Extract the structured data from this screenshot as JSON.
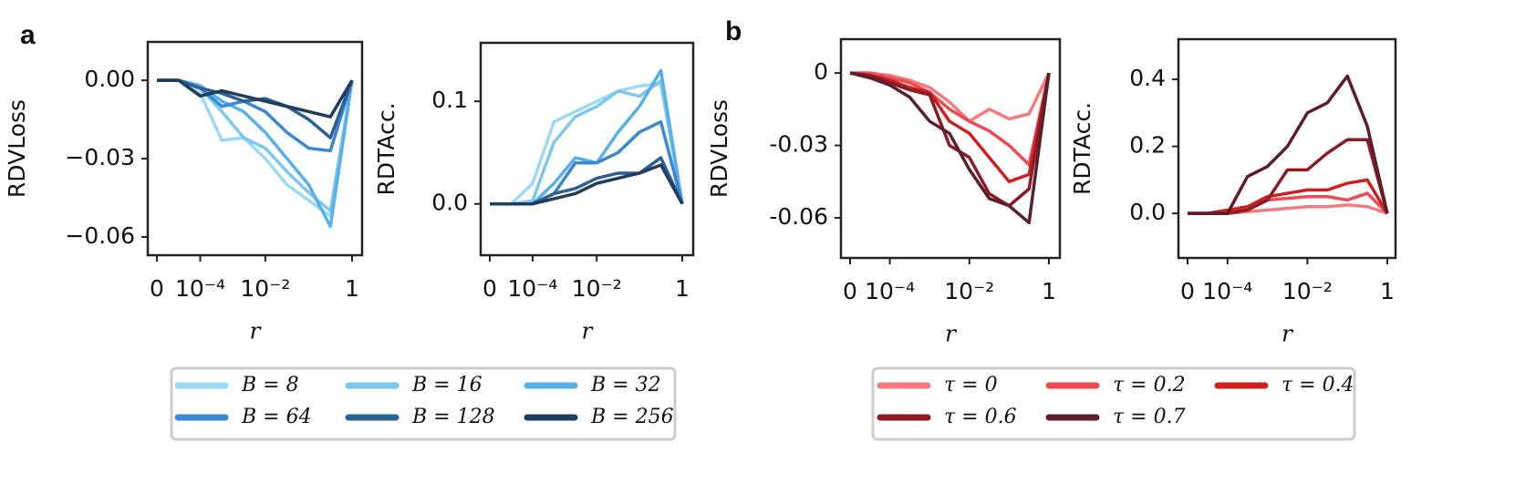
{
  "panel_labels": [
    "a",
    "b"
  ],
  "chart_data": [
    {
      "type": "line",
      "ylabel": "RDVLoss",
      "xlabel": "r",
      "legend": "below",
      "categories": [
        "0",
        null,
        "10⁻⁴",
        null,
        null,
        "10⁻²",
        null,
        null,
        null,
        "1"
      ],
      "ylim": [
        -0.067,
        0.0147
      ],
      "yticks": [
        {
          "value": 0,
          "label": "0.00"
        },
        {
          "value": -0.03,
          "label": "−0.03"
        },
        {
          "value": -0.06,
          "label": "−0.06"
        }
      ],
      "series": [
        {
          "name": "B = 8",
          "color": "#9dd9f3",
          "values": [
            0,
            0,
            -0.005,
            -0.023,
            -0.022,
            -0.03,
            -0.04,
            -0.046,
            -0.052,
            0
          ]
        },
        {
          "name": "B = 16",
          "color": "#7dc6ee",
          "values": [
            0,
            0,
            -0.003,
            -0.012,
            -0.022,
            -0.026,
            -0.035,
            -0.043,
            -0.05,
            0
          ]
        },
        {
          "name": "B = 32",
          "color": "#57b0ea",
          "values": [
            0,
            0,
            -0.002,
            -0.008,
            -0.012,
            -0.02,
            -0.03,
            -0.04,
            -0.056,
            0
          ]
        },
        {
          "name": "B = 64",
          "color": "#3a88d2",
          "values": [
            0,
            0,
            -0.003,
            -0.01,
            -0.008,
            -0.012,
            -0.02,
            -0.026,
            -0.027,
            0
          ]
        },
        {
          "name": "B = 128",
          "color": "#2c5f93",
          "values": [
            0,
            0,
            -0.003,
            -0.005,
            -0.008,
            -0.007,
            -0.01,
            -0.015,
            -0.022,
            0
          ]
        },
        {
          "name": "B = 256",
          "color": "#1f3e5e",
          "values": [
            0,
            0,
            -0.006,
            -0.004,
            -0.006,
            -0.008,
            -0.01,
            -0.012,
            -0.014,
            0
          ]
        }
      ]
    },
    {
      "type": "line",
      "ylabel": "RDTAcc.",
      "xlabel": "r",
      "categories": [
        "0",
        null,
        "10⁻⁴",
        null,
        null,
        "10⁻²",
        null,
        null,
        null,
        "1"
      ],
      "ylim": [
        -0.05,
        0.157
      ],
      "yticks": [
        {
          "value": 0,
          "label": "0.0"
        },
        0.1
      ],
      "series": [
        {
          "color": "#9dd9f3",
          "values": [
            0,
            0,
            0.02,
            0.08,
            0.09,
            0.1,
            0.11,
            0.115,
            0.117,
            0
          ]
        },
        {
          "color": "#7dc6ee",
          "values": [
            0,
            0,
            0.003,
            0.06,
            0.085,
            0.095,
            0.11,
            0.105,
            0.12,
            0
          ]
        },
        {
          "color": "#57b0ea",
          "values": [
            0,
            0,
            0,
            0.02,
            0.045,
            0.04,
            0.07,
            0.095,
            0.13,
            0
          ]
        },
        {
          "color": "#3a88d2",
          "values": [
            0,
            0,
            0,
            0.01,
            0.04,
            0.04,
            0.05,
            0.07,
            0.08,
            0
          ]
        },
        {
          "color": "#2c5f93",
          "values": [
            0,
            0,
            0,
            0.01,
            0.015,
            0.025,
            0.03,
            0.03,
            0.045,
            0
          ]
        },
        {
          "color": "#1f3e5e",
          "values": [
            0,
            0,
            0,
            0.005,
            0.01,
            0.02,
            0.025,
            0.03,
            0.038,
            0
          ]
        }
      ]
    },
    {
      "type": "line",
      "ylabel": "RDVLoss",
      "xlabel": "r",
      "legend": "below",
      "categories": [
        "0",
        null,
        "10⁻⁴",
        null,
        null,
        null,
        "10⁻²",
        null,
        null,
        null,
        "1"
      ],
      "ylim": [
        -0.0766,
        0.014
      ],
      "yticks": [
        0,
        {
          "value": -0.03,
          "label": "-0.03"
        },
        {
          "value": -0.06,
          "label": "-0.06"
        }
      ],
      "series": [
        {
          "name": "τ = 0",
          "color": "#f57a80",
          "values": [
            0,
            0,
            -0.001,
            -0.003,
            -0.006,
            -0.012,
            -0.02,
            -0.015,
            -0.019,
            -0.017,
            0
          ]
        },
        {
          "name": "τ = 0.2",
          "color": "#ee4a55",
          "values": [
            0,
            0,
            -0.002,
            -0.004,
            -0.008,
            -0.015,
            -0.02,
            -0.024,
            -0.03,
            -0.038,
            0
          ]
        },
        {
          "name": "τ = 0.4",
          "color": "#cc1f1f",
          "values": [
            0,
            -0.001,
            -0.003,
            -0.006,
            -0.008,
            -0.02,
            -0.025,
            -0.035,
            -0.045,
            -0.042,
            0
          ]
        },
        {
          "name": "τ = 0.6",
          "color": "#8e1a24",
          "values": [
            0,
            -0.001,
            -0.004,
            -0.007,
            -0.009,
            -0.03,
            -0.035,
            -0.05,
            -0.055,
            -0.048,
            0
          ]
        },
        {
          "name": "τ = 0.7",
          "color": "#5a1f2a",
          "values": [
            0,
            -0.002,
            -0.005,
            -0.01,
            -0.02,
            -0.025,
            -0.04,
            -0.052,
            -0.055,
            -0.062,
            0
          ]
        }
      ]
    },
    {
      "type": "line",
      "ylabel": "RDTAcc.",
      "xlabel": "r",
      "categories": [
        "0",
        null,
        "10⁻⁴",
        null,
        null,
        null,
        "10⁻²",
        null,
        null,
        null,
        "1"
      ],
      "ylim": [
        -0.133,
        0.52
      ],
      "yticks": [
        {
          "value": 0,
          "label": "0.0"
        },
        0.2,
        0.4
      ],
      "series": [
        {
          "color": "#f57a80",
          "values": [
            0,
            0,
            0,
            0.005,
            0.01,
            0.015,
            0.02,
            0.02,
            0.025,
            0.02,
            0
          ]
        },
        {
          "color": "#ee4a55",
          "values": [
            0,
            0,
            0.005,
            0.01,
            0.04,
            0.045,
            0.05,
            0.05,
            0.04,
            0.06,
            0
          ]
        },
        {
          "color": "#cc1f1f",
          "values": [
            0,
            0,
            0.01,
            0.02,
            0.05,
            0.06,
            0.07,
            0.07,
            0.09,
            0.1,
            0
          ]
        },
        {
          "color": "#8e1a24",
          "values": [
            0,
            0,
            0,
            0.01,
            0.04,
            0.13,
            0.13,
            0.18,
            0.22,
            0.22,
            0
          ]
        },
        {
          "color": "#5a1f2a",
          "values": [
            0,
            0,
            0,
            0.11,
            0.14,
            0.2,
            0.3,
            0.33,
            0.41,
            0.26,
            0
          ]
        }
      ]
    }
  ]
}
